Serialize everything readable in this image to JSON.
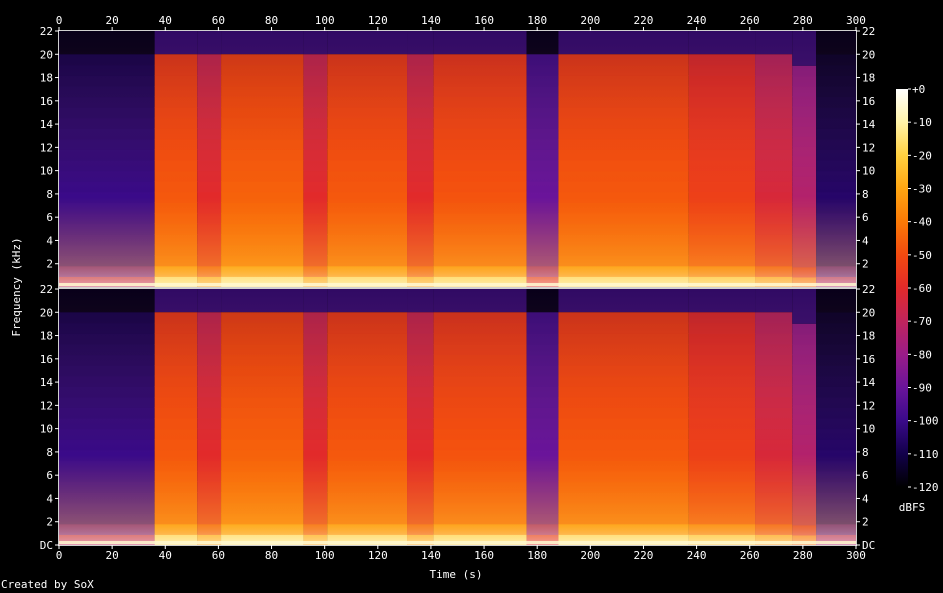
{
  "chart_data": {
    "type": "heatmap",
    "channels": 2,
    "xlabel": "Time (s)",
    "ylabel": "Frequency (kHz)",
    "colorbar_label": "dBFS",
    "credit": "Created by SoX",
    "xlim": [
      0,
      300
    ],
    "ylim_khz": [
      0,
      22
    ],
    "x_ticks": [
      "0",
      "20",
      "40",
      "60",
      "80",
      "100",
      "120",
      "140",
      "160",
      "180",
      "200",
      "220",
      "240",
      "260",
      "280",
      "300"
    ],
    "y_ticks_top": [
      "22",
      "20",
      "18",
      "16",
      "14",
      "12",
      "10",
      "8",
      "6",
      "4",
      "2"
    ],
    "y_ticks_bottom": [
      "22",
      "20",
      "18",
      "16",
      "14",
      "12",
      "10",
      "8",
      "6",
      "4",
      "2",
      "DC"
    ],
    "colorbar_range_dbfs": [
      -120,
      0
    ],
    "colorbar_ticks": [
      "+0",
      "-10",
      "-20",
      "-30",
      "-40",
      "-50",
      "-60",
      "-70",
      "-80",
      "-90",
      "-100",
      "-110",
      "-120"
    ],
    "colors": {
      "scale": [
        "#000000",
        "#12004a",
        "#3a0a8a",
        "#6a149a",
        "#9a1c88",
        "#c0245c",
        "#e22a2a",
        "#f24a10",
        "#fb7a06",
        "#ffa612",
        "#ffd040",
        "#fff3a8",
        "#ffffff"
      ]
    },
    "segments": [
      {
        "start_s": 0,
        "end_s": 36,
        "level_dbfs": -95,
        "cutoff_khz": 20
      },
      {
        "start_s": 36,
        "end_s": 52,
        "level_dbfs": -42,
        "cutoff_khz": 20
      },
      {
        "start_s": 52,
        "end_s": 61,
        "level_dbfs": -55,
        "cutoff_khz": 20
      },
      {
        "start_s": 61,
        "end_s": 92,
        "level_dbfs": -40,
        "cutoff_khz": 20
      },
      {
        "start_s": 92,
        "end_s": 101,
        "level_dbfs": -55,
        "cutoff_khz": 20
      },
      {
        "start_s": 101,
        "end_s": 131,
        "level_dbfs": -42,
        "cutoff_khz": 20
      },
      {
        "start_s": 131,
        "end_s": 141,
        "level_dbfs": -55,
        "cutoff_khz": 20
      },
      {
        "start_s": 141,
        "end_s": 176,
        "level_dbfs": -43,
        "cutoff_khz": 20
      },
      {
        "start_s": 176,
        "end_s": 188,
        "level_dbfs": -85,
        "cutoff_khz": 20
      },
      {
        "start_s": 188,
        "end_s": 237,
        "level_dbfs": -42,
        "cutoff_khz": 20
      },
      {
        "start_s": 237,
        "end_s": 262,
        "level_dbfs": -48,
        "cutoff_khz": 20
      },
      {
        "start_s": 262,
        "end_s": 276,
        "level_dbfs": -58,
        "cutoff_khz": 20
      },
      {
        "start_s": 276,
        "end_s": 285,
        "level_dbfs": -68,
        "cutoff_khz": 19
      },
      {
        "start_s": 285,
        "end_s": 300,
        "level_dbfs": -100,
        "cutoff_khz": 20
      }
    ]
  }
}
